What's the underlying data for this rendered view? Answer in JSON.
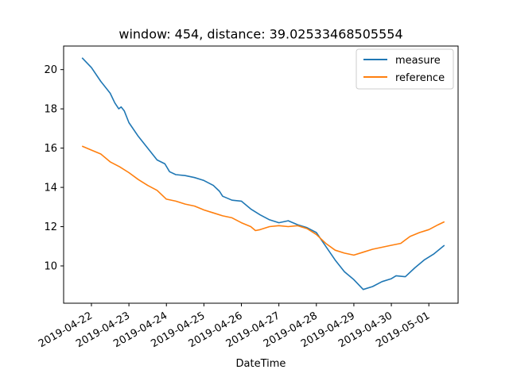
{
  "chart_data": {
    "type": "line",
    "title": "window: 454, distance: 39.02533468505554",
    "xlabel": "DateTime",
    "ylabel": "",
    "xlim": [
      "2019-04-21 06:12",
      "2019-05-01 18:44"
    ],
    "ylim": [
      8.1,
      21.2
    ],
    "x_ticks": [
      "2019-04-22",
      "2019-04-23",
      "2019-04-24",
      "2019-04-25",
      "2019-04-26",
      "2019-04-27",
      "2019-04-28",
      "2019-04-29",
      "2019-04-30",
      "2019-05-01"
    ],
    "y_ticks": [
      10,
      12,
      14,
      16,
      18,
      20
    ],
    "grid": false,
    "legend_position": "upper right",
    "series": [
      {
        "name": "measure",
        "color": "#1f77b4",
        "points": [
          [
            "2019-04-21 18:00",
            20.6
          ],
          [
            "2019-04-22 00:00",
            20.1
          ],
          [
            "2019-04-22 06:00",
            19.4
          ],
          [
            "2019-04-22 12:00",
            18.8
          ],
          [
            "2019-04-22 15:00",
            18.3
          ],
          [
            "2019-04-22 17:30",
            18.0
          ],
          [
            "2019-04-22 19:00",
            18.1
          ],
          [
            "2019-04-22 21:00",
            17.9
          ],
          [
            "2019-04-23 00:00",
            17.3
          ],
          [
            "2019-04-23 06:00",
            16.6
          ],
          [
            "2019-04-23 12:00",
            16.0
          ],
          [
            "2019-04-23 18:00",
            15.4
          ],
          [
            "2019-04-23 23:00",
            15.2
          ],
          [
            "2019-04-24 02:00",
            14.8
          ],
          [
            "2019-04-24 06:00",
            14.65
          ],
          [
            "2019-04-24 12:00",
            14.6
          ],
          [
            "2019-04-24 18:00",
            14.5
          ],
          [
            "2019-04-25 00:00",
            14.35
          ],
          [
            "2019-04-25 06:00",
            14.1
          ],
          [
            "2019-04-25 10:00",
            13.8
          ],
          [
            "2019-04-25 12:00",
            13.55
          ],
          [
            "2019-04-25 18:00",
            13.35
          ],
          [
            "2019-04-26 00:00",
            13.3
          ],
          [
            "2019-04-26 06:00",
            12.9
          ],
          [
            "2019-04-26 12:00",
            12.6
          ],
          [
            "2019-04-26 18:00",
            12.35
          ],
          [
            "2019-04-27 00:00",
            12.2
          ],
          [
            "2019-04-27 06:00",
            12.3
          ],
          [
            "2019-04-27 12:00",
            12.1
          ],
          [
            "2019-04-27 18:00",
            11.95
          ],
          [
            "2019-04-28 00:00",
            11.7
          ],
          [
            "2019-04-28 06:00",
            11.0
          ],
          [
            "2019-04-28 12:00",
            10.3
          ],
          [
            "2019-04-28 18:00",
            9.7
          ],
          [
            "2019-04-29 00:00",
            9.3
          ],
          [
            "2019-04-29 06:00",
            8.8
          ],
          [
            "2019-04-29 12:00",
            8.95
          ],
          [
            "2019-04-29 18:00",
            9.2
          ],
          [
            "2019-04-30 00:00",
            9.35
          ],
          [
            "2019-04-30 03:00",
            9.5
          ],
          [
            "2019-04-30 09:00",
            9.45
          ],
          [
            "2019-04-30 15:00",
            9.9
          ],
          [
            "2019-04-30 21:00",
            10.3
          ],
          [
            "2019-05-01 03:00",
            10.6
          ],
          [
            "2019-05-01 10:00",
            11.05
          ]
        ]
      },
      {
        "name": "reference",
        "color": "#ff7f0e",
        "points": [
          [
            "2019-04-21 18:00",
            16.1
          ],
          [
            "2019-04-22 00:00",
            15.9
          ],
          [
            "2019-04-22 06:00",
            15.7
          ],
          [
            "2019-04-22 12:00",
            15.3
          ],
          [
            "2019-04-22 18:00",
            15.05
          ],
          [
            "2019-04-23 00:00",
            14.75
          ],
          [
            "2019-04-23 06:00",
            14.4
          ],
          [
            "2019-04-23 12:00",
            14.1
          ],
          [
            "2019-04-23 18:00",
            13.85
          ],
          [
            "2019-04-24 00:00",
            13.4
          ],
          [
            "2019-04-24 06:00",
            13.3
          ],
          [
            "2019-04-24 12:00",
            13.15
          ],
          [
            "2019-04-24 18:00",
            13.05
          ],
          [
            "2019-04-25 00:00",
            12.85
          ],
          [
            "2019-04-25 06:00",
            12.7
          ],
          [
            "2019-04-25 12:00",
            12.55
          ],
          [
            "2019-04-25 18:00",
            12.45
          ],
          [
            "2019-04-26 00:00",
            12.2
          ],
          [
            "2019-04-26 06:00",
            12.0
          ],
          [
            "2019-04-26 09:00",
            11.8
          ],
          [
            "2019-04-26 12:00",
            11.85
          ],
          [
            "2019-04-26 18:00",
            12.0
          ],
          [
            "2019-04-27 00:00",
            12.05
          ],
          [
            "2019-04-27 06:00",
            12.0
          ],
          [
            "2019-04-27 12:00",
            12.05
          ],
          [
            "2019-04-27 18:00",
            11.9
          ],
          [
            "2019-04-28 00:00",
            11.6
          ],
          [
            "2019-04-28 06:00",
            11.15
          ],
          [
            "2019-04-28 12:00",
            10.8
          ],
          [
            "2019-04-28 18:00",
            10.65
          ],
          [
            "2019-04-29 00:00",
            10.55
          ],
          [
            "2019-04-29 06:00",
            10.7
          ],
          [
            "2019-04-29 12:00",
            10.85
          ],
          [
            "2019-04-29 18:00",
            10.95
          ],
          [
            "2019-04-30 00:00",
            11.05
          ],
          [
            "2019-04-30 06:00",
            11.15
          ],
          [
            "2019-04-30 12:00",
            11.5
          ],
          [
            "2019-04-30 18:00",
            11.7
          ],
          [
            "2019-05-01 00:00",
            11.85
          ],
          [
            "2019-05-01 06:00",
            12.1
          ],
          [
            "2019-05-01 10:00",
            12.25
          ]
        ]
      }
    ]
  }
}
